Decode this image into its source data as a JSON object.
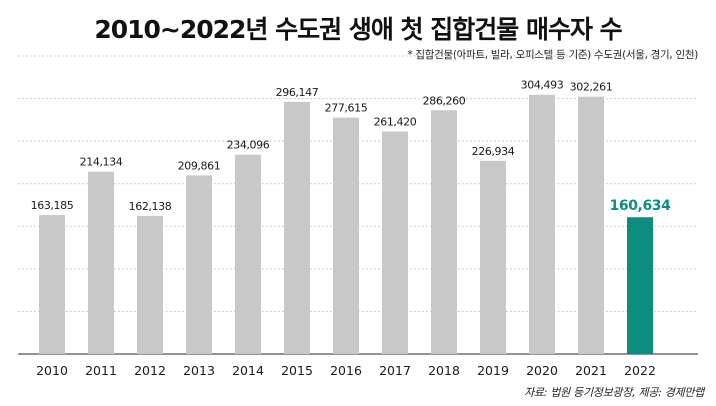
{
  "chart_data": {
    "type": "bar",
    "title": "2010~2022년 수도권 생애 첫 집합건물 매수자 수",
    "subtitle": "* 집합건물(아파트, 빌라, 오피스텔 등 기준) 수도권(서울, 경기, 인천)",
    "source": "자료: 법원 등기정보광장, 제공: 경제만랩",
    "categories": [
      "2010",
      "2011",
      "2012",
      "2013",
      "2014",
      "2015",
      "2016",
      "2017",
      "2018",
      "2019",
      "2020",
      "2021",
      "2022"
    ],
    "values": [
      163185,
      214134,
      162138,
      209861,
      234096,
      296147,
      277615,
      261420,
      286260,
      226934,
      304493,
      302261,
      160634
    ],
    "value_labels": [
      "163,185",
      "214,134",
      "162,138",
      "209,861",
      "234,096",
      "296,147",
      "277,615",
      "261,420",
      "286,260",
      "226,934",
      "304,493",
      "302,261",
      "160,634"
    ],
    "highlight_index": 12,
    "colors": {
      "bar": "#c8c8c8",
      "highlight": "#0e8c80",
      "highlight_label": "#0e8c80",
      "grid": "#bbbbbb"
    },
    "ylim": [
      0,
      350000
    ],
    "grid": true,
    "xlabel": "",
    "ylabel": ""
  }
}
